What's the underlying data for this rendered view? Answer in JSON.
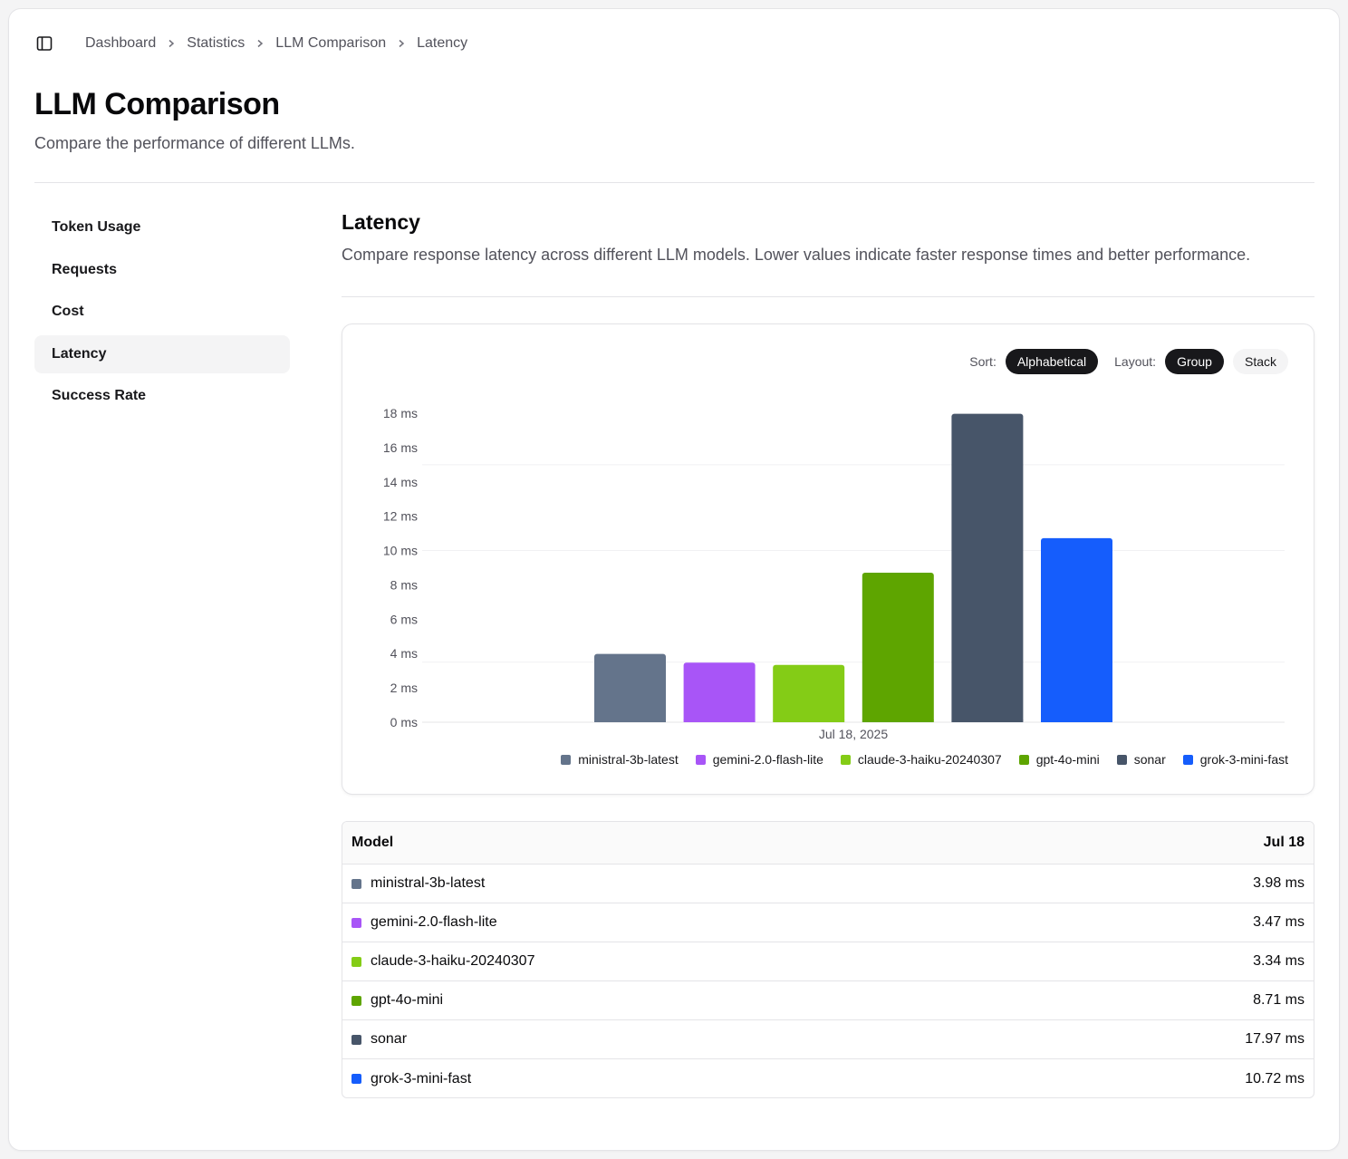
{
  "breadcrumb": [
    "Dashboard",
    "Statistics",
    "LLM Comparison",
    "Latency"
  ],
  "page": {
    "title": "LLM Comparison",
    "subtitle": "Compare the performance of different LLMs."
  },
  "nav": {
    "items": [
      {
        "label": "Token Usage",
        "active": false
      },
      {
        "label": "Requests",
        "active": false
      },
      {
        "label": "Cost",
        "active": false
      },
      {
        "label": "Latency",
        "active": true
      },
      {
        "label": "Success Rate",
        "active": false
      }
    ]
  },
  "section": {
    "title": "Latency",
    "description": "Compare response latency across different LLM models. Lower values indicate faster response times and better performance."
  },
  "controls": {
    "sort_label": "Sort:",
    "sort_value": "Alphabetical",
    "layout_label": "Layout:",
    "layout_group": "Group",
    "layout_stack": "Stack",
    "layout_selected": "Group"
  },
  "chart_data": {
    "type": "bar",
    "categories": [
      "Jul 18, 2025"
    ],
    "ylim": [
      0,
      18
    ],
    "yticks": [
      0,
      2,
      4,
      6,
      8,
      10,
      12,
      14,
      16,
      18
    ],
    "ytick_suffix": " ms",
    "series": [
      {
        "name": "ministral-3b-latest",
        "color": "#64748b",
        "values": [
          3.98
        ]
      },
      {
        "name": "gemini-2.0-flash-lite",
        "color": "#a855f7",
        "values": [
          3.47
        ]
      },
      {
        "name": "claude-3-haiku-20240307",
        "color": "#84cc16",
        "values": [
          3.34
        ]
      },
      {
        "name": "gpt-4o-mini",
        "color": "#5ea500",
        "values": [
          8.71
        ]
      },
      {
        "name": "sonar",
        "color": "#475569",
        "values": [
          17.97
        ]
      },
      {
        "name": "grok-3-mini-fast",
        "color": "#155dfc",
        "values": [
          10.72
        ]
      }
    ],
    "legend_position": "bottom"
  },
  "table": {
    "header_model": "Model",
    "header_date": "Jul 18",
    "rows": [
      {
        "model": "ministral-3b-latest",
        "color": "#64748b",
        "value": "3.98 ms"
      },
      {
        "model": "gemini-2.0-flash-lite",
        "color": "#a855f7",
        "value": "3.47 ms"
      },
      {
        "model": "claude-3-haiku-20240307",
        "color": "#84cc16",
        "value": "3.34 ms"
      },
      {
        "model": "gpt-4o-mini",
        "color": "#5ea500",
        "value": "8.71 ms"
      },
      {
        "model": "sonar",
        "color": "#475569",
        "value": "17.97 ms"
      },
      {
        "model": "grok-3-mini-fast",
        "color": "#155dfc",
        "value": "10.72 ms"
      }
    ]
  }
}
